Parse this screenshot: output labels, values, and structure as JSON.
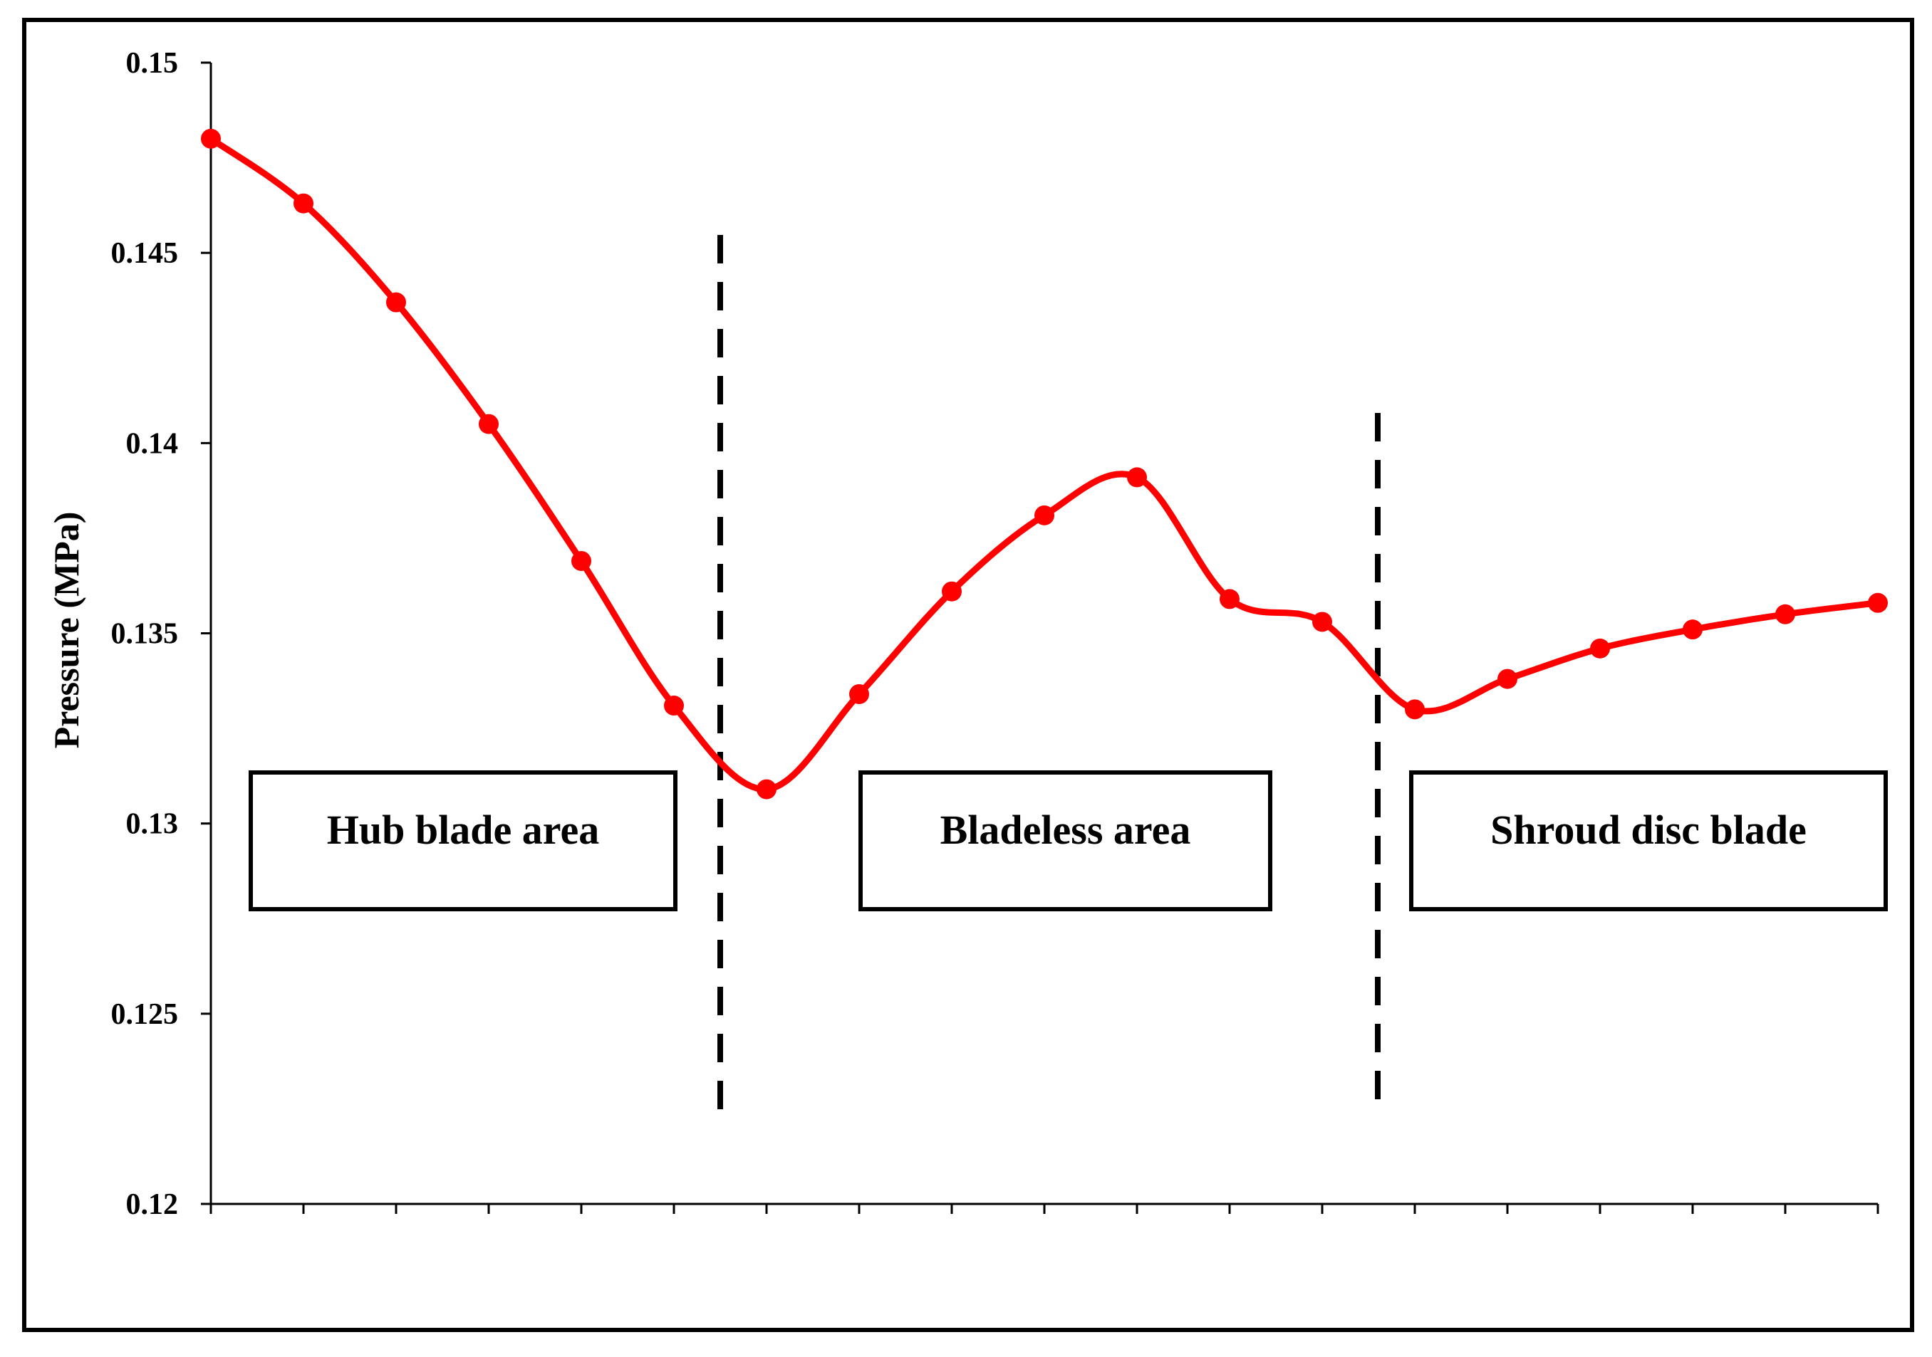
{
  "chart_data": {
    "type": "line",
    "title": "",
    "xlabel": "",
    "ylabel": "Pressure (MPa)",
    "ylim": [
      0.12,
      0.15
    ],
    "yticks": [
      "0.12",
      "0.125",
      "0.13",
      "0.135",
      "0.14",
      "0.145",
      "0.15"
    ],
    "grid": false,
    "series": [
      {
        "color": "#ff0000",
        "values": [
          0.148,
          0.1463,
          0.1437,
          0.1405,
          0.1369,
          0.1331,
          0.1309,
          0.1334,
          0.1361,
          0.1381,
          0.1391,
          0.1359,
          0.1353,
          0.133,
          0.1338,
          0.1346,
          0.1351,
          0.1355,
          0.1358
        ]
      }
    ],
    "regions": [
      {
        "label": "Hub blade area"
      },
      {
        "label": "Bladeless area"
      },
      {
        "label": "Shroud disc blade"
      }
    ],
    "dividers": [
      {
        "after_index": 5.5
      },
      {
        "after_index": 12.6
      }
    ]
  }
}
